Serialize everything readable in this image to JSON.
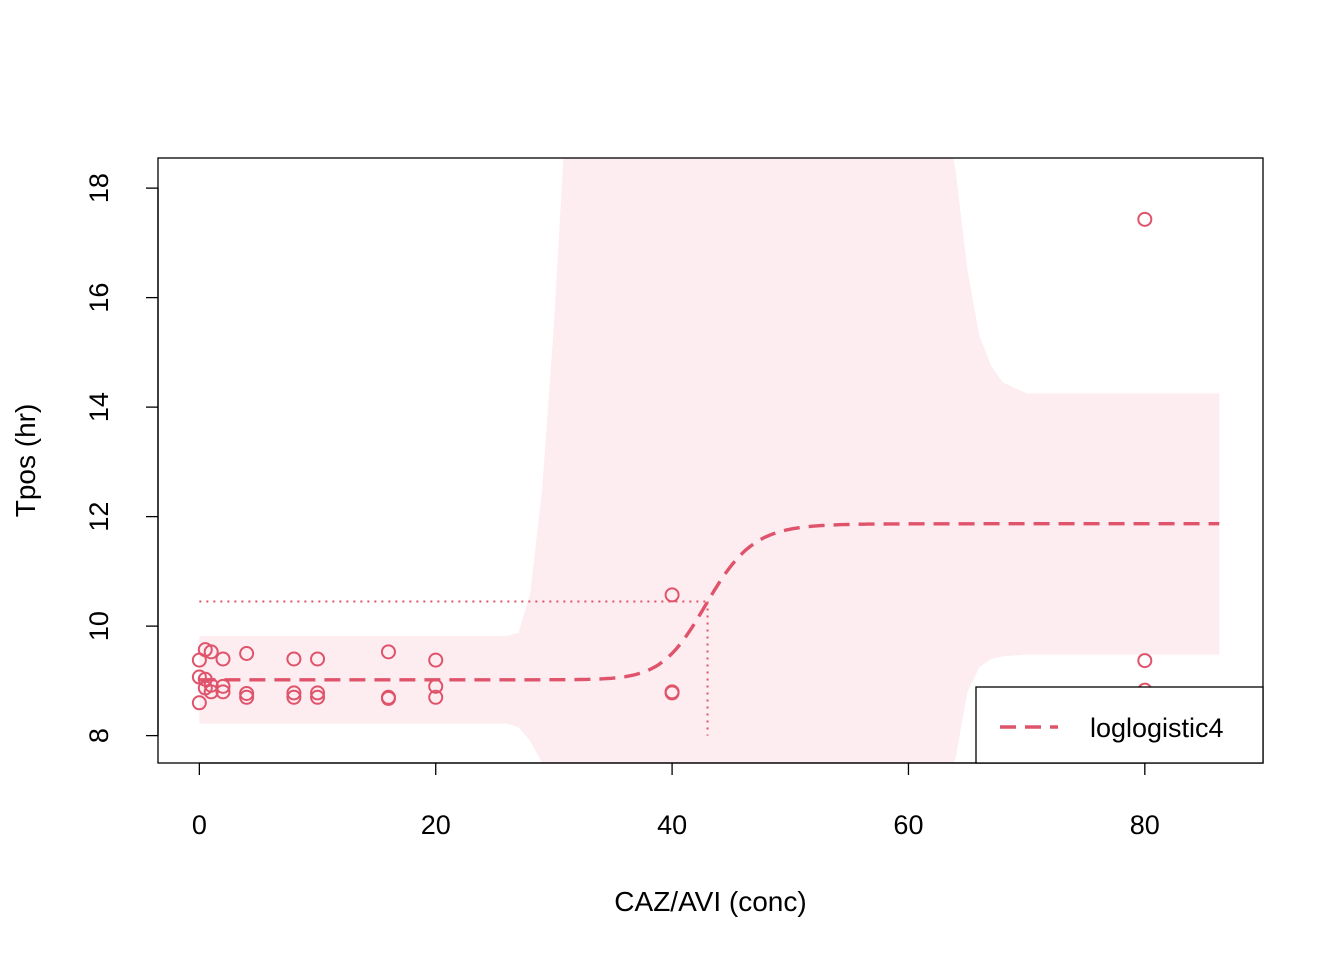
{
  "chart_data": {
    "type": "scatter",
    "title": "",
    "xlabel": "CAZ/AVI (conc)",
    "ylabel": "Tpos (hr)",
    "xlim": [
      -3.5,
      90
    ],
    "ylim": [
      7.5,
      18.55
    ],
    "xticks": [
      0,
      20,
      40,
      60,
      80
    ],
    "yticks": [
      8,
      10,
      12,
      14,
      16,
      18
    ],
    "grid": false,
    "legend": {
      "position": "bottom-right",
      "entries": [
        "loglogistic4"
      ]
    },
    "colors": {
      "series": "#DF536B",
      "band": "#FDEDF1",
      "axis": "#000000"
    },
    "points": [
      [
        0,
        9.38
      ],
      [
        0,
        9.07
      ],
      [
        0,
        8.6
      ],
      [
        0.5,
        9.57
      ],
      [
        0.5,
        9.03
      ],
      [
        0.5,
        8.87
      ],
      [
        1,
        9.53
      ],
      [
        1,
        8.92
      ],
      [
        1,
        8.8
      ],
      [
        2,
        9.4
      ],
      [
        2,
        8.9
      ],
      [
        2,
        8.8
      ],
      [
        4,
        9.5
      ],
      [
        4,
        8.77
      ],
      [
        4,
        8.7
      ],
      [
        8,
        9.4
      ],
      [
        8,
        8.78
      ],
      [
        8,
        8.7
      ],
      [
        10,
        9.4
      ],
      [
        10,
        8.78
      ],
      [
        10,
        8.7
      ],
      [
        16,
        9.53
      ],
      [
        16,
        8.7
      ],
      [
        16,
        8.68
      ],
      [
        20,
        9.38
      ],
      [
        20,
        8.9
      ],
      [
        20,
        8.7
      ],
      [
        40,
        10.57
      ],
      [
        40,
        8.8
      ],
      [
        40,
        8.78
      ],
      [
        80,
        17.43
      ],
      [
        80,
        9.37
      ],
      [
        80,
        8.83
      ]
    ],
    "fit": {
      "name": "loglogistic4",
      "lower": 9.02,
      "upper": 11.87,
      "ed50": 43.0,
      "slope": 22,
      "x_range": [
        0,
        86.3
      ]
    },
    "ed50_line": {
      "x": 43.0,
      "y": 10.45,
      "x_start": 0,
      "y_bottom": 8.0
    },
    "confidence_band": {
      "x": [
        0,
        26,
        27,
        28,
        29,
        30,
        30.8,
        31,
        35,
        40,
        45,
        50,
        55,
        58,
        60,
        61,
        62,
        63,
        63.8,
        64,
        65,
        66,
        67,
        68,
        70,
        86.3
      ],
      "upper": [
        9.82,
        9.82,
        9.88,
        10.6,
        12.5,
        15.5,
        18.55,
        18.55,
        18.55,
        18.55,
        18.55,
        18.55,
        18.55,
        18.55,
        18.55,
        18.55,
        18.55,
        18.55,
        18.55,
        18.3,
        16.5,
        15.3,
        14.75,
        14.45,
        14.25,
        14.25
      ],
      "lower": [
        8.22,
        8.22,
        8.15,
        7.9,
        7.5,
        7.5,
        7.5,
        7.5,
        7.5,
        7.5,
        7.5,
        7.5,
        7.5,
        7.5,
        7.5,
        7.5,
        7.5,
        7.5,
        7.5,
        7.6,
        8.8,
        9.25,
        9.4,
        9.45,
        9.48,
        9.48
      ]
    }
  }
}
